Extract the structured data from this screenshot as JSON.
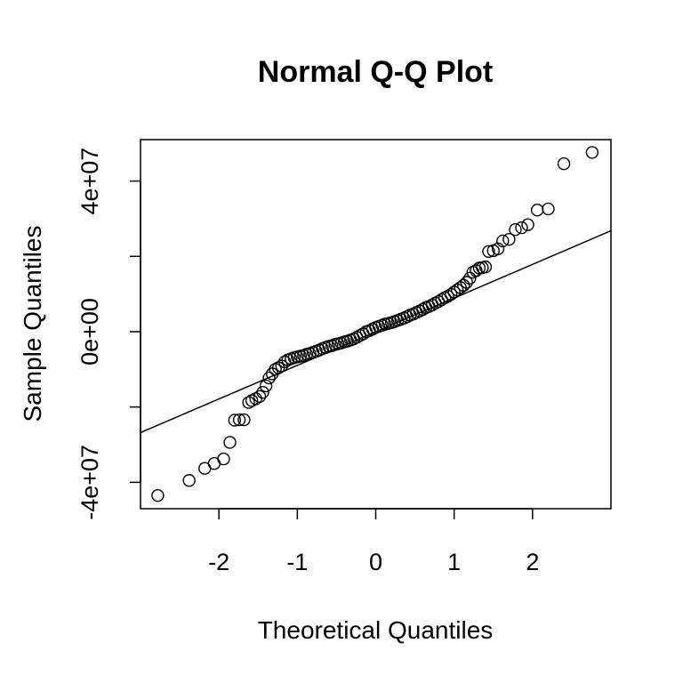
{
  "chart_data": {
    "type": "scatter",
    "title": "Normal Q-Q Plot",
    "xlabel": "Theoretical Quantiles",
    "ylabel": "Sample Quantiles",
    "xlim": [
      -3.0,
      3.0
    ],
    "ylim": [
      -47000000,
      51000000
    ],
    "x_ticks": [
      -2,
      -1,
      0,
      1,
      2
    ],
    "x_tick_labels": [
      "-2",
      "-1",
      "0",
      "1",
      "2"
    ],
    "y_ticks": [
      -40000000,
      -20000000,
      0,
      20000000,
      40000000
    ],
    "y_tick_labels": [
      "-4e+07",
      "",
      "0e+00",
      "",
      "4e+07"
    ],
    "grid": false,
    "reference_line": {
      "x": [
        -3.0,
        3.0
      ],
      "y": [
        -26800000,
        26800000
      ]
    },
    "series": [
      {
        "x": [
          -2.78,
          -2.38,
          -2.18,
          -2.06,
          -1.94,
          -1.86,
          -1.8,
          -1.74,
          -1.68,
          -1.62,
          -1.58,
          -1.53,
          -1.48,
          -1.44,
          -1.4,
          -1.36,
          -1.32,
          -1.28,
          -1.24,
          -1.2,
          -1.16,
          -1.12,
          -1.08,
          -1.04,
          -1.0,
          -0.96,
          -0.92,
          -0.88,
          -0.84,
          -0.8,
          -0.76,
          -0.72,
          -0.68,
          -0.64,
          -0.6,
          -0.56,
          -0.52,
          -0.48,
          -0.44,
          -0.4,
          -0.36,
          -0.32,
          -0.28,
          -0.24,
          -0.2,
          -0.16,
          -0.12,
          -0.08,
          -0.04,
          0.0,
          0.04,
          0.08,
          0.12,
          0.16,
          0.2,
          0.24,
          0.28,
          0.32,
          0.36,
          0.4,
          0.44,
          0.48,
          0.52,
          0.56,
          0.6,
          0.64,
          0.68,
          0.72,
          0.76,
          0.8,
          0.84,
          0.88,
          0.92,
          0.96,
          1.0,
          1.04,
          1.08,
          1.12,
          1.16,
          1.2,
          1.24,
          1.28,
          1.32,
          1.36,
          1.4,
          1.44,
          1.5,
          1.56,
          1.62,
          1.7,
          1.78,
          1.86,
          1.94,
          2.06,
          2.2,
          2.4,
          2.76
        ],
        "y": [
          -43500000,
          -39500000,
          -36300000,
          -35000000,
          -33800000,
          -29400000,
          -23500000,
          -23400000,
          -23400000,
          -18800000,
          -18300000,
          -17800000,
          -17200000,
          -16100000,
          -14400000,
          -12300000,
          -11200000,
          -10000000,
          -9600000,
          -9100000,
          -8000000,
          -7500000,
          -7200000,
          -6900000,
          -6700000,
          -6500000,
          -6300000,
          -6000000,
          -5800000,
          -5500000,
          -5200000,
          -4900000,
          -4500000,
          -4200000,
          -3900000,
          -3700000,
          -3400000,
          -3200000,
          -3000000,
          -2700000,
          -2500000,
          -2200000,
          -1900000,
          -1500000,
          -1000000,
          -600000,
          0,
          300000,
          700000,
          1100000,
          1400000,
          1700000,
          2000000,
          2200000,
          2400000,
          2700000,
          3000000,
          3300000,
          3600000,
          4000000,
          4400000,
          4700000,
          5100000,
          5500000,
          5900000,
          6400000,
          6700000,
          7100000,
          7600000,
          8000000,
          8500000,
          9000000,
          9400000,
          9900000,
          10500000,
          11100000,
          11700000,
          12300000,
          13100000,
          14200000,
          15800000,
          16200000,
          16900000,
          17000000,
          17200000,
          21300000,
          21500000,
          22000000,
          24100000,
          24500000,
          27100000,
          27600000,
          28400000,
          32300000,
          32600000,
          44600000,
          47600000
        ]
      }
    ]
  }
}
